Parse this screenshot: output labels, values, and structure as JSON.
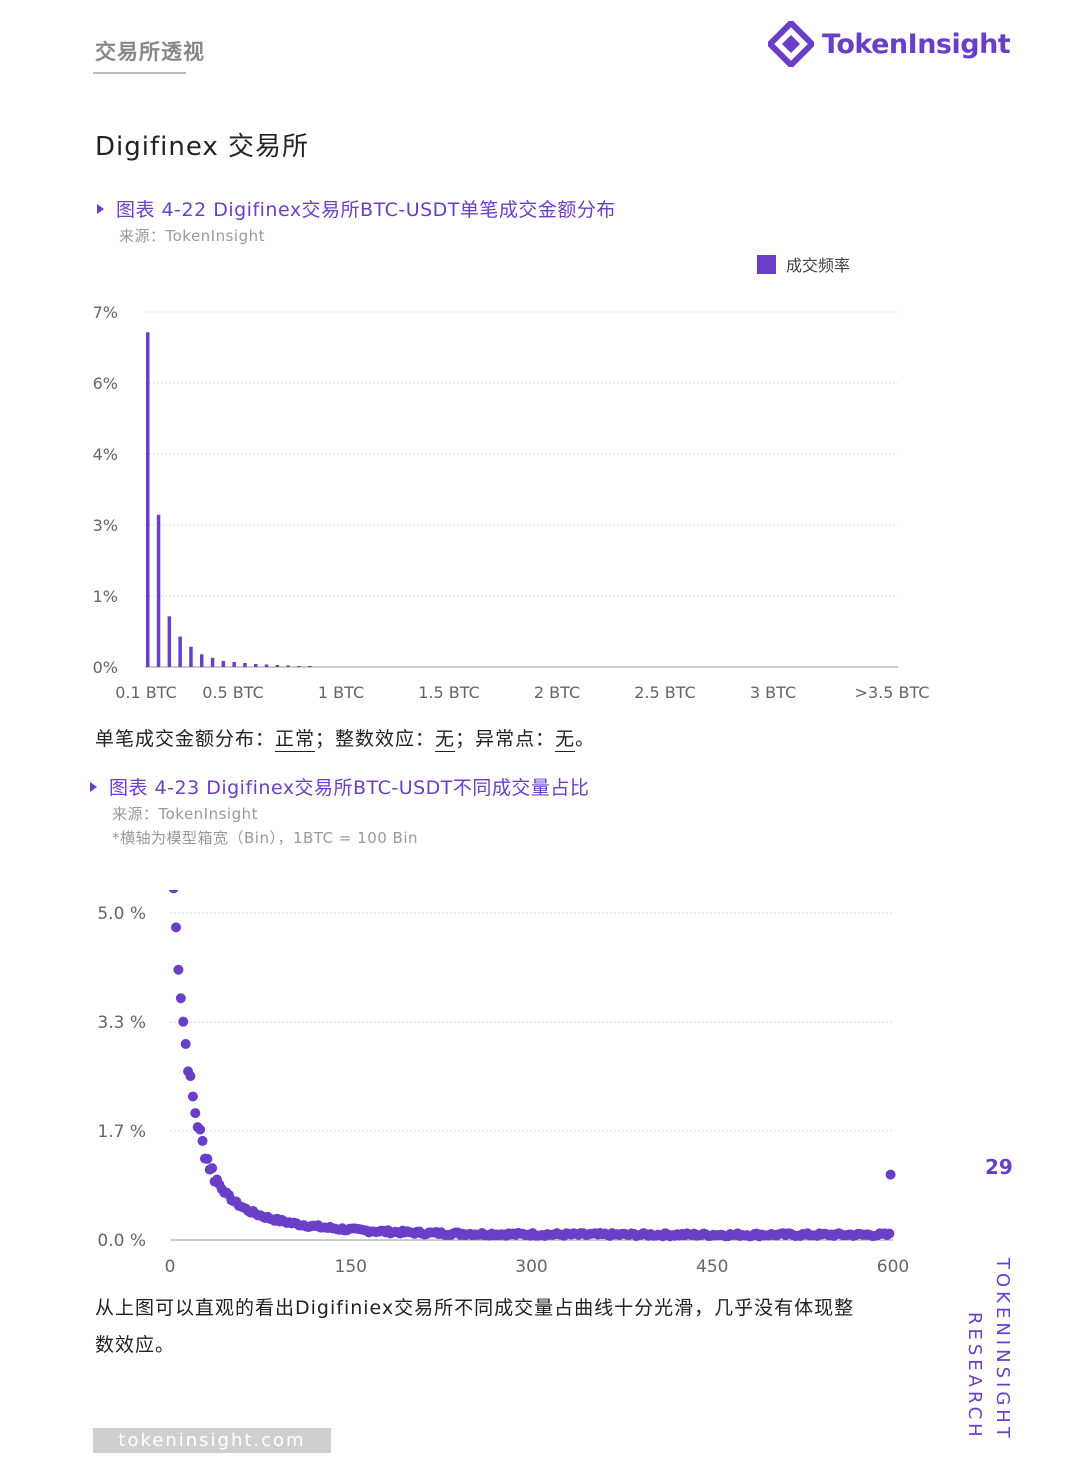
{
  "header": {
    "title": "交易所透视",
    "brand": "TokenInsight"
  },
  "section_title": "Digifinex 交易所",
  "figure1": {
    "title": "图表 4-22 Digifinex交易所BTC-USDT单笔成交金额分布",
    "source": "来源：TokenInsight",
    "legend": "成交频率",
    "accent": "#6a3fc8"
  },
  "summary": {
    "prefix": "单笔成交金额分布：",
    "v1": "正常",
    "sep1": "；整数效应：",
    "v2": "无",
    "sep2": "；异常点：",
    "v3": "无",
    "end": "。"
  },
  "figure2": {
    "title": "图表 4-23 Digifinex交易所BTC-USDT不同成交量占比",
    "source": "来源：TokenInsight",
    "note": "*横轴为模型箱宽（Bin），1BTC = 100 Bin"
  },
  "conclusion": {
    "line1": "从上图可以直观的看出Digifiniex交易所不同成交量占曲线十分光滑，几乎没有体现整",
    "line2": "数效应。"
  },
  "footer": {
    "url": "tokeninsight.com",
    "page": "29",
    "vertical1": "TOKENINSIGHT",
    "vertical2": "RESEARCH"
  },
  "chart_data": [
    {
      "type": "bar",
      "y_ticks": [
        "7%",
        "6%",
        "4%",
        "3%",
        "1%",
        "0%"
      ],
      "x_ticks": [
        "0.1 BTC",
        "0.5 BTC",
        "1 BTC",
        "1.5 BTC",
        "2 BTC",
        "2.5 BTC",
        "3 BTC",
        ">3.5 BTC"
      ],
      "series": [
        {
          "name": "成交频率",
          "values": [
            6.6,
            3.0,
            1.0,
            0.6,
            0.4,
            0.25,
            0.18,
            0.12,
            0.1,
            0.08,
            0.06,
            0.05,
            0.04,
            0.03,
            0.02,
            0.02
          ]
        }
      ],
      "ylim": [
        0,
        7
      ]
    },
    {
      "type": "scatter",
      "y_ticks": [
        "5.0 %",
        "3.3 %",
        "1.7 %",
        "0.0 %"
      ],
      "x_ticks": [
        "0",
        "150",
        "300",
        "450",
        "600"
      ],
      "xlim": [
        0,
        600
      ],
      "ylim": [
        0,
        5.0
      ],
      "outlier": {
        "x": 598,
        "y": 1.0
      }
    }
  ]
}
